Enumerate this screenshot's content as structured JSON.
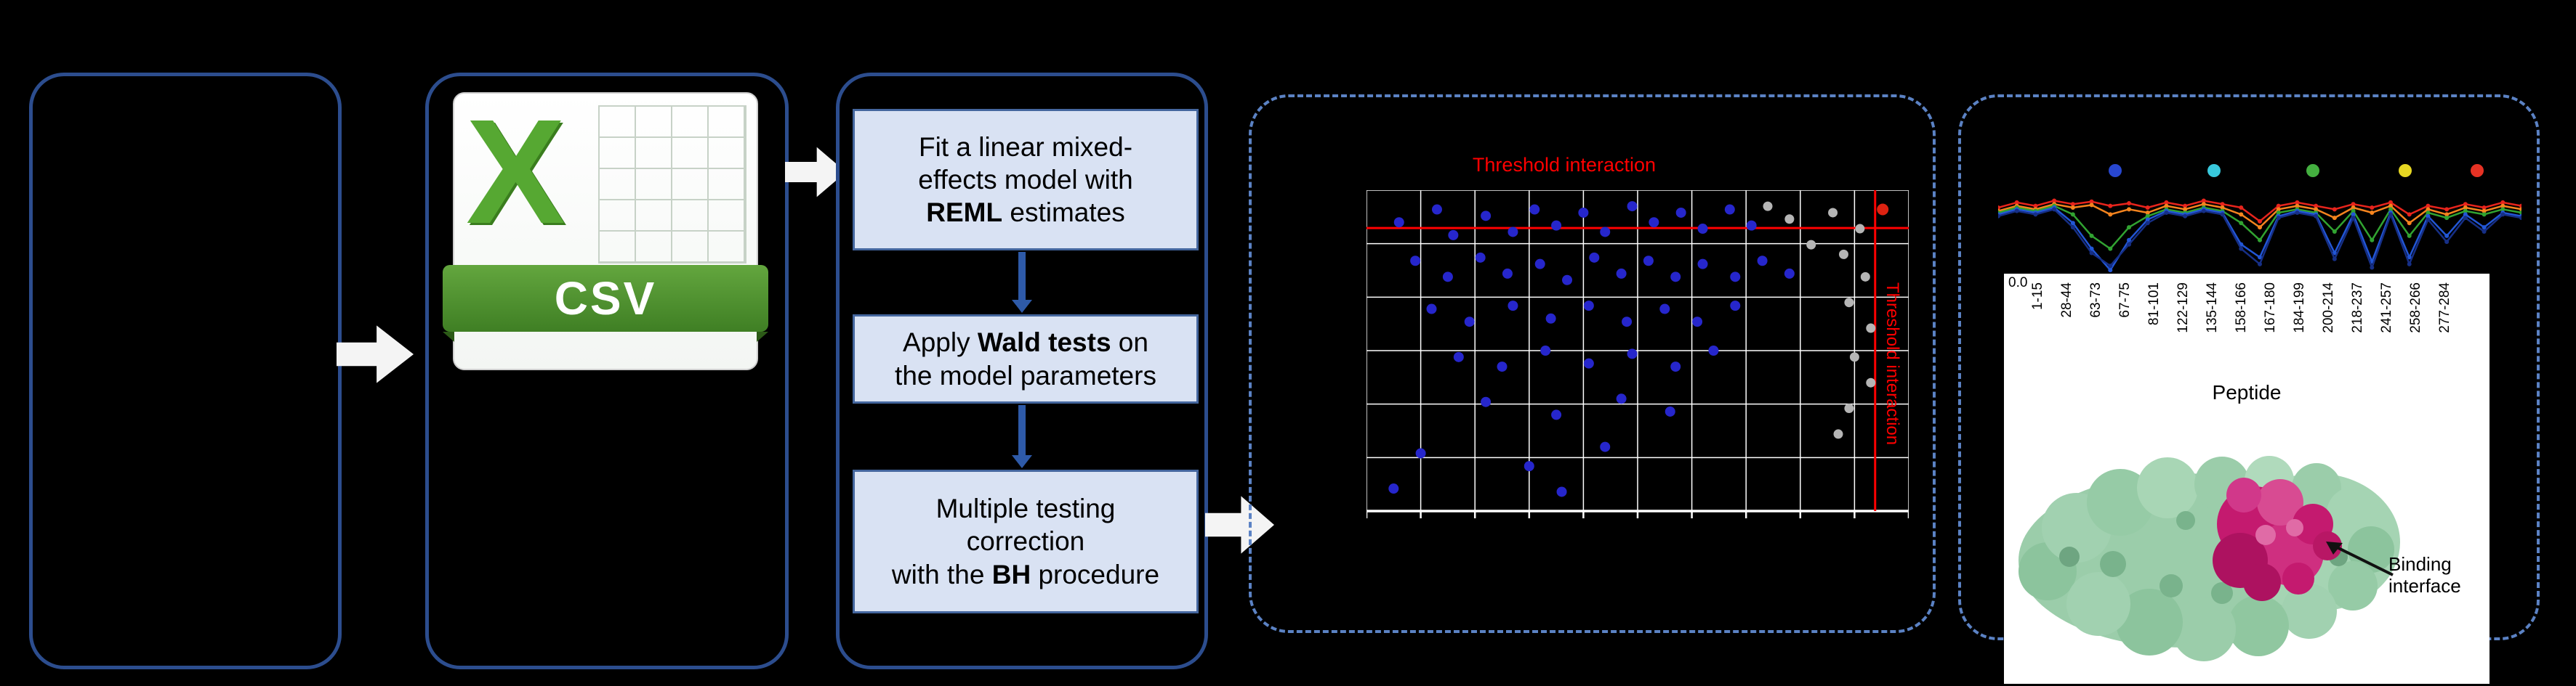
{
  "figure": {
    "background": "#000000"
  },
  "csv_box": {
    "x_glyph": "X",
    "banner_label": "CSV"
  },
  "steps": {
    "step1": [
      {
        "t": "Fit a linear mixed-",
        "b": false,
        "brk": true
      },
      {
        "t": "effects model with",
        "b": false,
        "brk": true
      },
      {
        "t": "REML",
        "b": true
      },
      {
        "t": " estimates",
        "b": false
      }
    ],
    "step2": [
      {
        "t": "Apply ",
        "b": false
      },
      {
        "t": "Wald tests",
        "b": true
      },
      {
        "t": " on",
        "b": false,
        "brk": true
      },
      {
        "t": "the model parameters",
        "b": false
      }
    ],
    "step3": [
      {
        "t": "Multiple testing",
        "b": false,
        "brk": true
      },
      {
        "t": "correction",
        "b": false,
        "brk": true
      },
      {
        "t": "with the ",
        "b": false
      },
      {
        "t": "BH",
        "b": true
      },
      {
        "t": " procedure",
        "b": false
      }
    ]
  },
  "volcano": {
    "title": "Threshold interaction",
    "side_label": "Threshold interaction",
    "threshold_color": "#ff0000",
    "grid": {
      "cols": 10,
      "rows": 6,
      "line_color": "#ffffff"
    },
    "hline": 0.118,
    "vline": 0.938,
    "dot_colors": {
      "blue": "#2626cc",
      "gray": "#b5b5b5",
      "red": "#dd2211"
    },
    "blue_dots": [
      [
        0.06,
        0.1
      ],
      [
        0.13,
        0.06
      ],
      [
        0.16,
        0.14
      ],
      [
        0.22,
        0.08
      ],
      [
        0.27,
        0.13
      ],
      [
        0.31,
        0.06
      ],
      [
        0.35,
        0.11
      ],
      [
        0.4,
        0.07
      ],
      [
        0.44,
        0.13
      ],
      [
        0.49,
        0.05
      ],
      [
        0.53,
        0.1
      ],
      [
        0.58,
        0.07
      ],
      [
        0.62,
        0.12
      ],
      [
        0.67,
        0.06
      ],
      [
        0.71,
        0.11
      ],
      [
        0.09,
        0.22
      ],
      [
        0.15,
        0.27
      ],
      [
        0.21,
        0.21
      ],
      [
        0.26,
        0.26
      ],
      [
        0.32,
        0.23
      ],
      [
        0.37,
        0.28
      ],
      [
        0.42,
        0.21
      ],
      [
        0.47,
        0.26
      ],
      [
        0.52,
        0.22
      ],
      [
        0.57,
        0.27
      ],
      [
        0.62,
        0.23
      ],
      [
        0.68,
        0.27
      ],
      [
        0.73,
        0.22
      ],
      [
        0.78,
        0.26
      ],
      [
        0.12,
        0.37
      ],
      [
        0.19,
        0.41
      ],
      [
        0.27,
        0.36
      ],
      [
        0.34,
        0.4
      ],
      [
        0.41,
        0.36
      ],
      [
        0.48,
        0.41
      ],
      [
        0.55,
        0.37
      ],
      [
        0.61,
        0.41
      ],
      [
        0.68,
        0.36
      ],
      [
        0.17,
        0.52
      ],
      [
        0.25,
        0.55
      ],
      [
        0.33,
        0.5
      ],
      [
        0.41,
        0.54
      ],
      [
        0.49,
        0.51
      ],
      [
        0.57,
        0.55
      ],
      [
        0.64,
        0.5
      ],
      [
        0.22,
        0.66
      ],
      [
        0.35,
        0.7
      ],
      [
        0.47,
        0.65
      ],
      [
        0.56,
        0.69
      ],
      [
        0.1,
        0.82
      ],
      [
        0.3,
        0.86
      ],
      [
        0.44,
        0.8
      ],
      [
        0.05,
        0.93
      ],
      [
        0.36,
        0.94
      ]
    ],
    "gray_dots": [
      [
        0.86,
        0.07
      ],
      [
        0.91,
        0.12
      ],
      [
        0.88,
        0.2
      ],
      [
        0.92,
        0.27
      ],
      [
        0.89,
        0.35
      ],
      [
        0.93,
        0.43
      ],
      [
        0.9,
        0.52
      ],
      [
        0.93,
        0.6
      ],
      [
        0.89,
        0.68
      ],
      [
        0.87,
        0.76
      ],
      [
        0.78,
        0.09
      ],
      [
        0.82,
        0.17
      ],
      [
        0.74,
        0.05
      ]
    ],
    "red_dot": [
      0.952,
      0.06
    ]
  },
  "uptake_chart": {
    "y_tick": "0.0",
    "x_axis_title": "Peptide",
    "x_labels": [
      "1-15",
      "28-44",
      "63-73",
      "67-75",
      "81-101",
      "122-129",
      "135-144",
      "158-166",
      "167-180",
      "184-199",
      "200-214",
      "218-237",
      "241-257",
      "258-266",
      "277-284"
    ],
    "legend_dots": [
      {
        "color": "#2847d0",
        "x": 0.224
      },
      {
        "color": "#38c8dc",
        "x": 0.4125
      },
      {
        "color": "#44b040",
        "x": 0.6014
      },
      {
        "color": "#e6d722",
        "x": 0.7778
      },
      {
        "color": "#e63224",
        "x": 0.9153
      }
    ],
    "series": [
      {
        "name": "red",
        "color": "#e8241c",
        "values": [
          0.78,
          0.84,
          0.8,
          0.86,
          0.82,
          0.85,
          0.8,
          0.83,
          0.78,
          0.84,
          0.8,
          0.86,
          0.82,
          0.78,
          0.62,
          0.8,
          0.84,
          0.8,
          0.76,
          0.82,
          0.78,
          0.84,
          0.7,
          0.8,
          0.76,
          0.82,
          0.78,
          0.84,
          0.8
        ]
      },
      {
        "name": "orange",
        "color": "#f5841e",
        "values": [
          0.74,
          0.8,
          0.76,
          0.82,
          0.78,
          0.81,
          0.7,
          0.76,
          0.72,
          0.8,
          0.76,
          0.82,
          0.78,
          0.7,
          0.55,
          0.76,
          0.8,
          0.76,
          0.66,
          0.78,
          0.72,
          0.8,
          0.6,
          0.76,
          0.7,
          0.78,
          0.74,
          0.8,
          0.76
        ]
      },
      {
        "name": "green",
        "color": "#31a331",
        "values": [
          0.72,
          0.78,
          0.74,
          0.8,
          0.7,
          0.45,
          0.3,
          0.55,
          0.68,
          0.76,
          0.72,
          0.78,
          0.74,
          0.6,
          0.4,
          0.72,
          0.76,
          0.72,
          0.5,
          0.74,
          0.4,
          0.76,
          0.45,
          0.72,
          0.66,
          0.74,
          0.7,
          0.76,
          0.72
        ]
      },
      {
        "name": "blue",
        "color": "#2256d6",
        "values": [
          0.7,
          0.76,
          0.72,
          0.78,
          0.6,
          0.3,
          0.05,
          0.4,
          0.64,
          0.74,
          0.7,
          0.76,
          0.72,
          0.35,
          0.2,
          0.68,
          0.74,
          0.7,
          0.25,
          0.7,
          0.15,
          0.72,
          0.2,
          0.68,
          0.45,
          0.7,
          0.55,
          0.72,
          0.68
        ]
      },
      {
        "name": "navy",
        "color": "#162f86",
        "values": [
          0.68,
          0.74,
          0.7,
          0.76,
          0.55,
          0.25,
          0.1,
          0.35,
          0.6,
          0.72,
          0.68,
          0.74,
          0.7,
          0.3,
          0.12,
          0.66,
          0.72,
          0.68,
          0.18,
          0.66,
          0.08,
          0.7,
          0.12,
          0.64,
          0.38,
          0.66,
          0.5,
          0.7,
          0.66
        ]
      }
    ]
  },
  "protein": {
    "annotation": "Binding interface"
  }
}
